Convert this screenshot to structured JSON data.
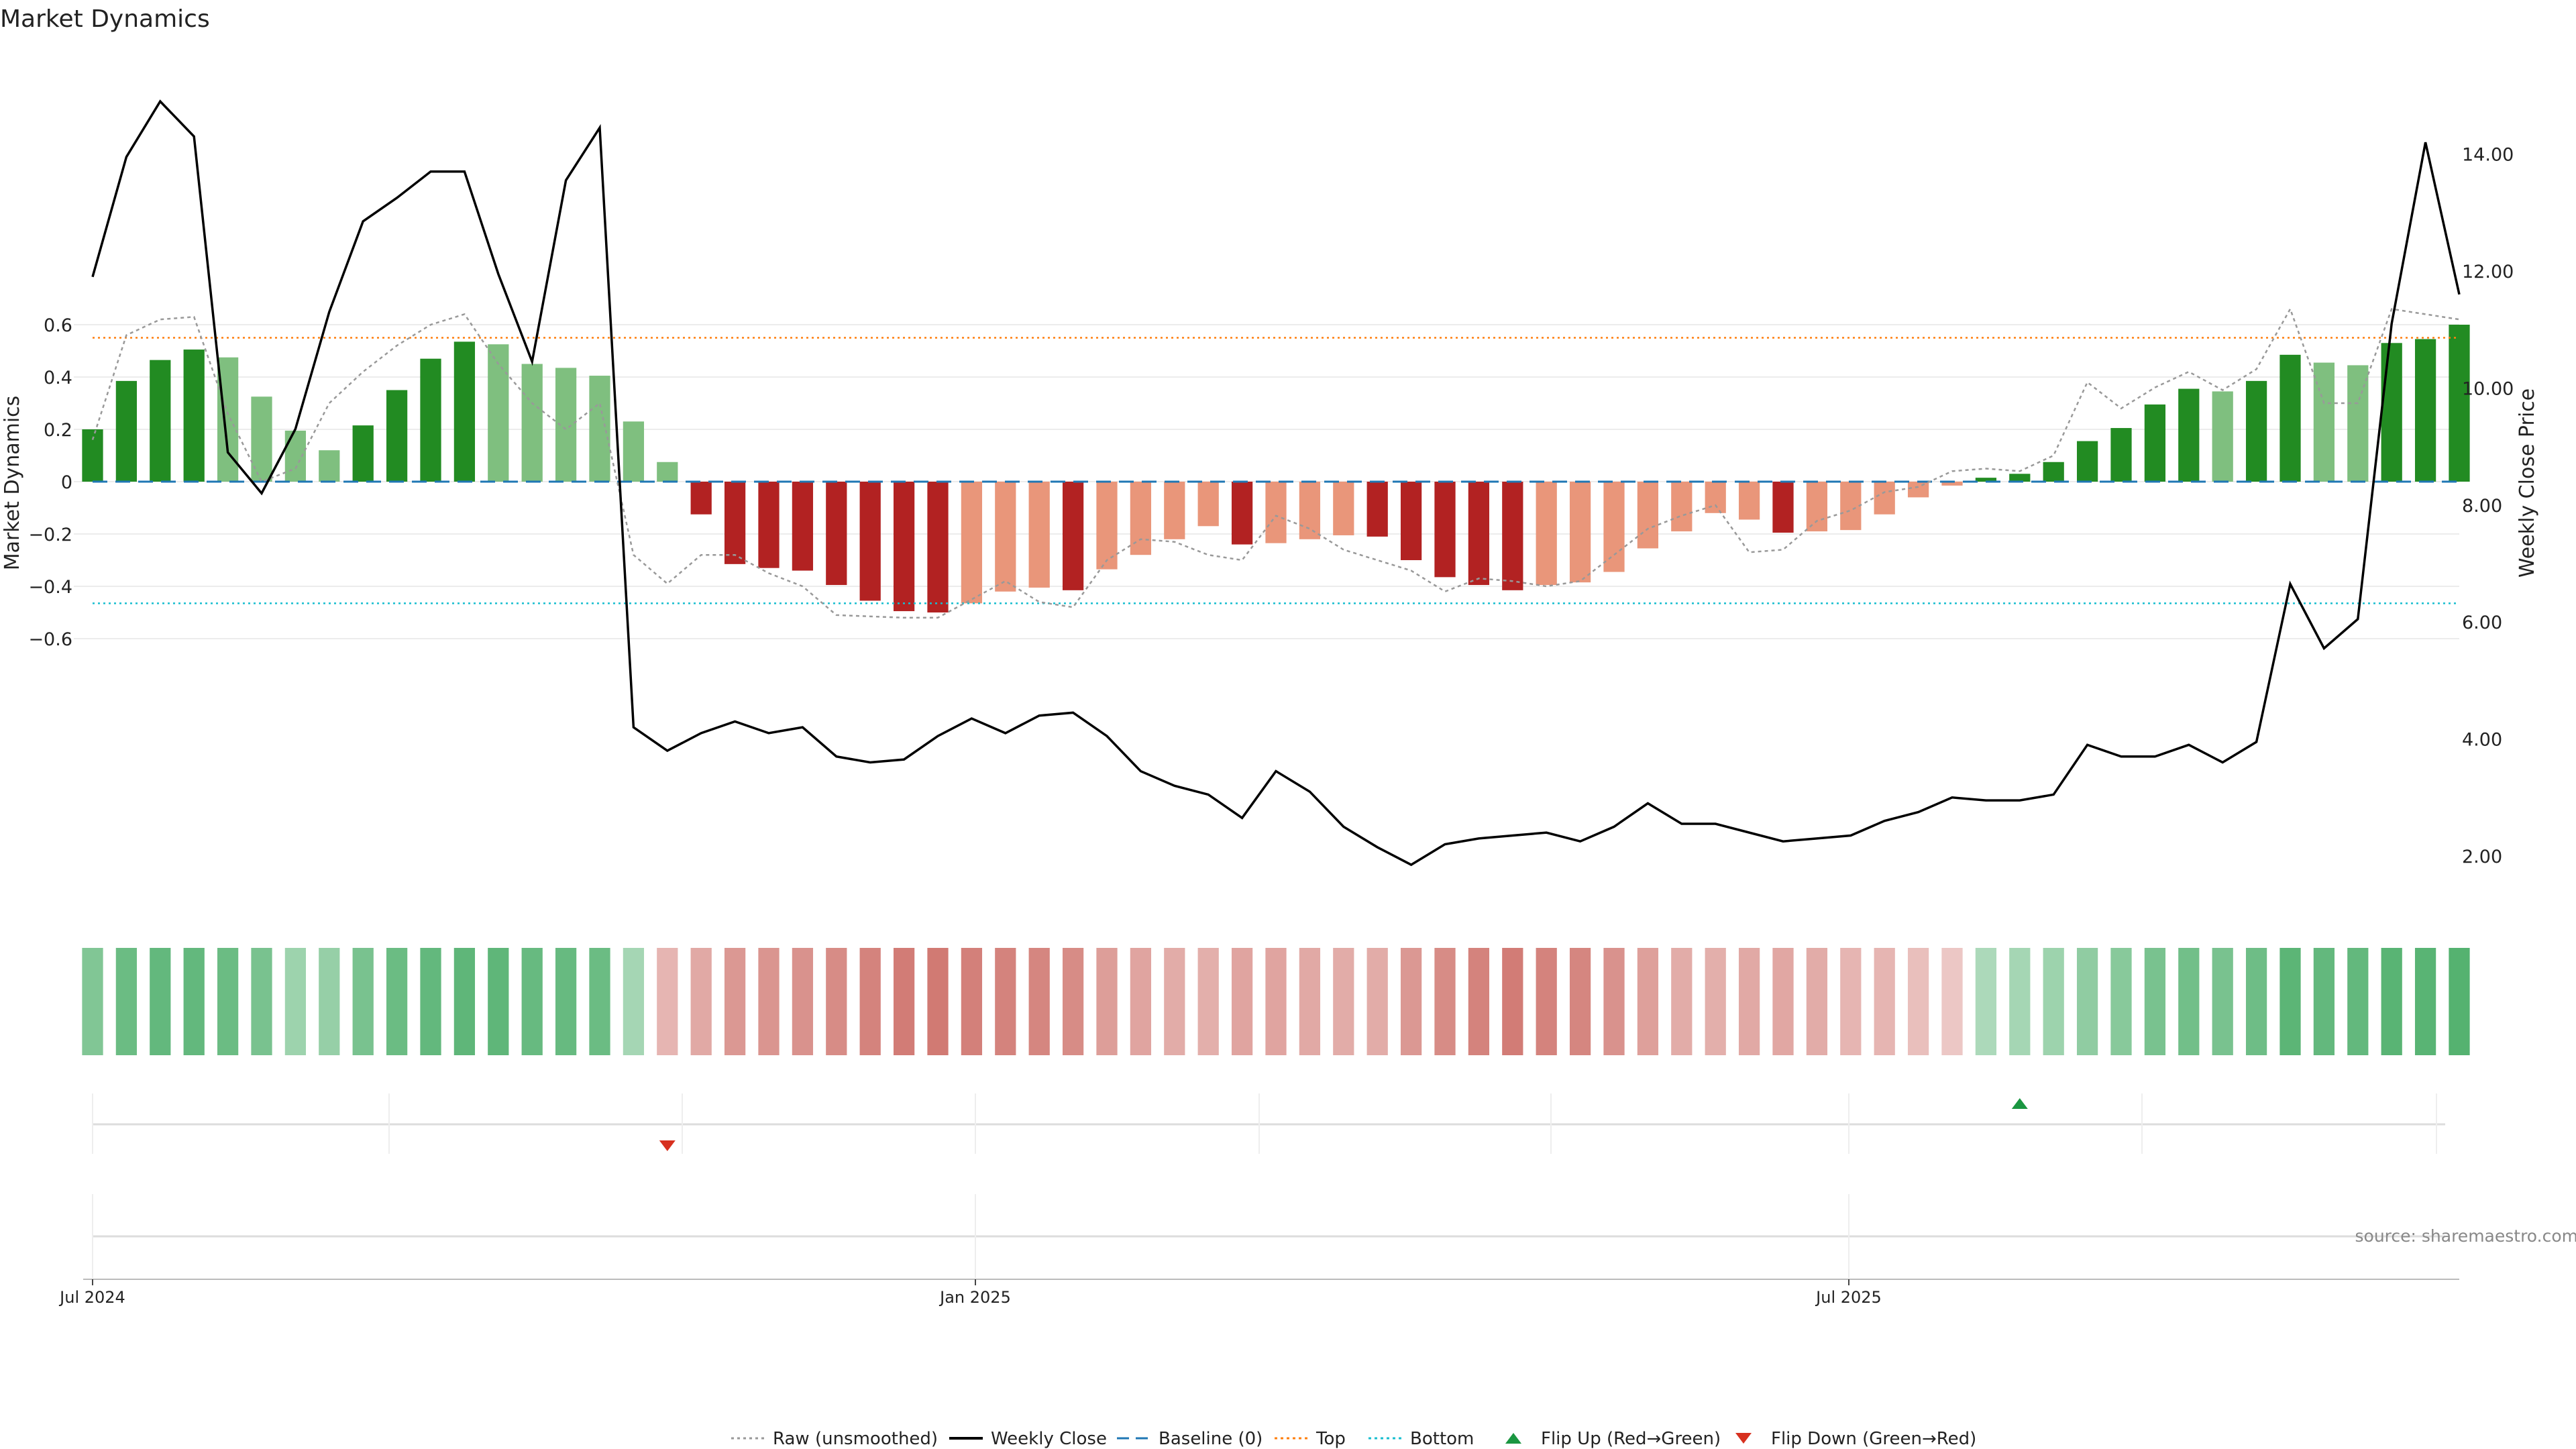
{
  "title": "Market Dynamics",
  "source": "source: sharemaestro.com",
  "colors": {
    "strong_green": "#228b22",
    "light_green": "#7fbf7f",
    "strong_red": "#b22222",
    "light_red": "#e9967a",
    "close_line": "#000000",
    "raw_line": "#999999",
    "baseline": "#1f77b4",
    "top": "#ff7f0e",
    "bottom": "#17becf",
    "flip_up": "#1a9641",
    "flip_down": "#d7301f",
    "source_text": "#888888"
  },
  "chart_data": {
    "type": "bar",
    "title": "Market Dynamics",
    "ylabel": "Market Dynamics",
    "y2label": "Weekly Close Price",
    "ylim": [
      -0.65,
      0.65
    ],
    "y2lim": [
      1.75,
      15.75
    ],
    "yticks": [
      "0.6",
      "0.4",
      "0.2",
      "0",
      "−0.2",
      "−0.4",
      "−0.6"
    ],
    "y2ticks": [
      "14.00",
      "12.00",
      "10.00",
      "8.00",
      "6.00",
      "4.00",
      "2.00"
    ],
    "xticks": [
      "Jul 2024",
      "Jan 2025",
      "Jul 2025"
    ],
    "top_level": 0.55,
    "bottom_level": -0.465,
    "baseline": 0,
    "categories": [
      "2024-07-01",
      "2024-07-08",
      "2024-07-15",
      "2024-07-22",
      "2024-07-29",
      "2024-08-05",
      "2024-08-12",
      "2024-08-19",
      "2024-08-26",
      "2024-09-02",
      "2024-09-09",
      "2024-09-16",
      "2024-09-23",
      "2024-09-30",
      "2024-10-07",
      "2024-10-14",
      "2024-10-21",
      "2024-10-28",
      "2024-11-04",
      "2024-11-11",
      "2024-11-18",
      "2024-11-25",
      "2024-12-02",
      "2024-12-09",
      "2024-12-16",
      "2024-12-23",
      "2024-12-30",
      "2025-01-06",
      "2025-01-13",
      "2025-01-20",
      "2025-01-27",
      "2025-02-03",
      "2025-02-10",
      "2025-02-17",
      "2025-02-24",
      "2025-03-03",
      "2025-03-10",
      "2025-03-17",
      "2025-03-24",
      "2025-03-31",
      "2025-04-07",
      "2025-04-14",
      "2025-04-21",
      "2025-04-28",
      "2025-05-05",
      "2025-05-12",
      "2025-05-19",
      "2025-05-26",
      "2025-06-02",
      "2025-06-09",
      "2025-06-16",
      "2025-06-23",
      "2025-06-30",
      "2025-07-07",
      "2025-07-14",
      "2025-07-21",
      "2025-07-28",
      "2025-08-04",
      "2025-08-11",
      "2025-08-18",
      "2025-08-25",
      "2025-09-01",
      "2025-09-08",
      "2025-09-15",
      "2025-09-22",
      "2025-09-29",
      "2025-10-06",
      "2025-10-13",
      "2025-10-20",
      "2025-10-27",
      "2025-11-03"
    ],
    "series": [
      {
        "name": "Market Dynamics",
        "values": [
          0.2,
          0.385,
          0.465,
          0.505,
          0.475,
          0.325,
          0.195,
          0.12,
          0.215,
          0.35,
          0.47,
          0.535,
          0.525,
          0.45,
          0.435,
          0.405,
          0.23,
          0.075,
          -0.125,
          -0.315,
          -0.33,
          -0.34,
          -0.395,
          -0.455,
          -0.495,
          -0.5,
          -0.465,
          -0.42,
          -0.405,
          -0.415,
          -0.335,
          -0.28,
          -0.22,
          -0.17,
          -0.24,
          -0.235,
          -0.22,
          -0.205,
          -0.21,
          -0.3,
          -0.365,
          -0.395,
          -0.415,
          -0.395,
          -0.385,
          -0.345,
          -0.255,
          -0.19,
          -0.12,
          -0.145,
          -0.195,
          -0.19,
          -0.185,
          -0.125,
          -0.06,
          -0.015,
          0.015,
          0.03,
          0.075,
          0.155,
          0.205,
          0.295,
          0.355,
          0.345,
          0.385,
          0.485,
          0.455,
          0.445,
          0.53,
          0.545,
          0.6
        ],
        "strength": [
          "strong",
          "strong",
          "strong",
          "strong",
          "light",
          "light",
          "light",
          "light",
          "strong",
          "strong",
          "strong",
          "strong",
          "light",
          "light",
          "light",
          "light",
          "light",
          "light",
          "strong",
          "strong",
          "strong",
          "strong",
          "strong",
          "strong",
          "strong",
          "strong",
          "light",
          "light",
          "light",
          "strong",
          "light",
          "light",
          "light",
          "light",
          "strong",
          "light",
          "light",
          "light",
          "strong",
          "strong",
          "strong",
          "strong",
          "strong",
          "light",
          "light",
          "light",
          "light",
          "light",
          "light",
          "light",
          "strong",
          "light",
          "light",
          "light",
          "light",
          "light",
          "strong",
          "strong",
          "strong",
          "strong",
          "strong",
          "strong",
          "strong",
          "light",
          "strong",
          "strong",
          "light",
          "light",
          "strong",
          "strong",
          "strong"
        ]
      },
      {
        "name": "Raw (unsmoothed)",
        "values": [
          0.16,
          0.56,
          0.62,
          0.63,
          0.26,
          0.0,
          0.05,
          0.3,
          0.42,
          0.52,
          0.6,
          0.64,
          0.45,
          0.3,
          0.2,
          0.3,
          -0.28,
          -0.39,
          -0.28,
          -0.28,
          -0.35,
          -0.4,
          -0.51,
          -0.515,
          -0.52,
          -0.52,
          -0.45,
          -0.38,
          -0.46,
          -0.48,
          -0.3,
          -0.22,
          -0.23,
          -0.28,
          -0.3,
          -0.13,
          -0.18,
          -0.26,
          -0.3,
          -0.34,
          -0.42,
          -0.37,
          -0.38,
          -0.4,
          -0.38,
          -0.28,
          -0.18,
          -0.13,
          -0.09,
          -0.27,
          -0.26,
          -0.15,
          -0.11,
          -0.04,
          -0.02,
          0.04,
          0.05,
          0.04,
          0.1,
          0.38,
          0.28,
          0.36,
          0.42,
          0.35,
          0.43,
          0.66,
          0.3,
          0.3,
          0.66,
          0.64,
          0.62
        ]
      },
      {
        "name": "Weekly Close",
        "values": [
          11.9,
          13.95,
          14.9,
          14.3,
          8.9,
          8.2,
          9.3,
          11.3,
          12.85,
          13.25,
          13.7,
          13.7,
          11.95,
          10.45,
          13.55,
          14.45,
          4.2,
          3.8,
          4.1,
          4.3,
          4.1,
          4.2,
          3.7,
          3.6,
          3.65,
          4.05,
          4.35,
          4.1,
          4.4,
          4.45,
          4.05,
          3.45,
          3.2,
          3.05,
          2.65,
          3.45,
          3.1,
          2.5,
          2.15,
          1.85,
          2.2,
          2.3,
          2.35,
          2.4,
          2.25,
          2.5,
          2.9,
          2.55,
          2.55,
          2.4,
          2.25,
          2.3,
          2.35,
          2.6,
          2.75,
          3.0,
          2.95,
          2.95,
          3.05,
          3.9,
          3.7,
          3.7,
          3.9,
          3.6,
          3.95,
          6.65,
          5.55,
          6.05,
          11.1,
          14.2,
          11.6
        ]
      }
    ],
    "heat_strip": {
      "values": [
        0.55,
        0.7,
        0.75,
        0.75,
        0.7,
        0.6,
        0.35,
        0.4,
        0.6,
        0.7,
        0.75,
        0.78,
        0.78,
        0.72,
        0.72,
        0.7,
        0.3,
        0.3,
        0.4,
        0.55,
        0.57,
        0.6,
        0.65,
        0.72,
        0.78,
        0.8,
        0.75,
        0.72,
        0.7,
        0.65,
        0.5,
        0.45,
        0.38,
        0.35,
        0.45,
        0.45,
        0.4,
        0.38,
        0.38,
        0.55,
        0.65,
        0.72,
        0.78,
        0.72,
        0.7,
        0.6,
        0.48,
        0.38,
        0.35,
        0.4,
        0.42,
        0.38,
        0.3,
        0.3,
        0.22,
        0.15,
        0.25,
        0.3,
        0.35,
        0.45,
        0.5,
        0.6,
        0.65,
        0.6,
        0.68,
        0.8,
        0.75,
        0.75,
        0.82,
        0.82,
        0.85
      ],
      "sign": [
        1,
        1,
        1,
        1,
        1,
        1,
        1,
        1,
        1,
        1,
        1,
        1,
        1,
        1,
        1,
        1,
        1,
        -1,
        -1,
        -1,
        -1,
        -1,
        -1,
        -1,
        -1,
        -1,
        -1,
        -1,
        -1,
        -1,
        -1,
        -1,
        -1,
        -1,
        -1,
        -1,
        -1,
        -1,
        -1,
        -1,
        -1,
        -1,
        -1,
        -1,
        -1,
        -1,
        -1,
        -1,
        -1,
        -1,
        -1,
        -1,
        -1,
        -1,
        -1,
        -1,
        1,
        1,
        1,
        1,
        1,
        1,
        1,
        1,
        1,
        1,
        1,
        1,
        1,
        1,
        1
      ]
    },
    "flips": [
      {
        "type": "Flip Down (Green→Red)",
        "date": "2024-10-28"
      },
      {
        "type": "Flip Up (Red→Green)",
        "date": "2025-08-04"
      }
    ]
  },
  "legend": [
    {
      "label": "Raw (unsmoothed)",
      "kind": "dotted",
      "color": "#999999"
    },
    {
      "label": "Weekly Close",
      "kind": "solid",
      "color": "#000000"
    },
    {
      "label": "Baseline (0)",
      "kind": "dashed",
      "color": "#1f77b4"
    },
    {
      "label": "Top",
      "kind": "dotted",
      "color": "#ff7f0e"
    },
    {
      "label": "Bottom",
      "kind": "dotted",
      "color": "#17becf"
    },
    {
      "label": "Flip Up (Red→Green)",
      "kind": "up",
      "color": "#1a9641"
    },
    {
      "label": "Flip Down (Green→Red)",
      "kind": "down",
      "color": "#d7301f"
    }
  ]
}
